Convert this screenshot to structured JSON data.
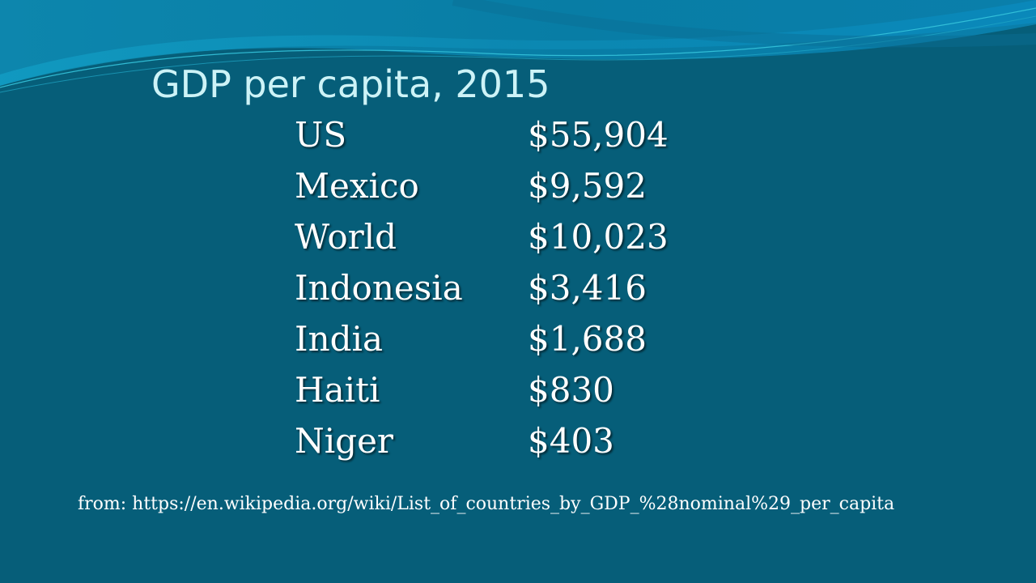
{
  "slide": {
    "title": "GDP per capita, 2015",
    "rows": [
      {
        "country": "US",
        "value": "$55,904"
      },
      {
        "country": "Mexico",
        "value": "$9,592"
      },
      {
        "country": "World",
        "value": "$10,023"
      },
      {
        "country": "Indonesia",
        "value": "$3,416"
      },
      {
        "country": "India",
        "value": "$1,688"
      },
      {
        "country": "Haiti",
        "value": "$830"
      },
      {
        "country": "Niger",
        "value": "$403"
      }
    ],
    "source_text": "from:  https://en.wikipedia.org/wiki/List_of_countries_by_GDP_%28nominal%29_per_capita"
  },
  "colors": {
    "background": "#065e79",
    "title": "#cdf3f7",
    "text": "#ffffff",
    "wave_light": "#1aa3c7",
    "wave_dark": "#0b7fa3"
  }
}
